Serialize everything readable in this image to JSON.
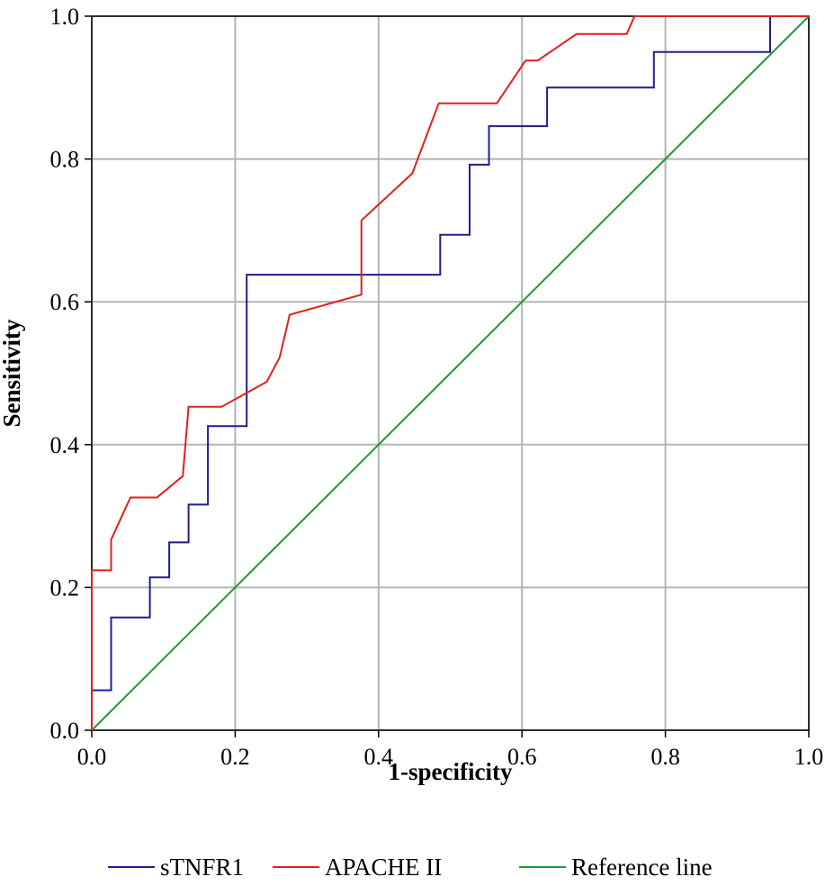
{
  "chart_data": {
    "type": "line",
    "title": "",
    "xlabel": "1-specificity",
    "ylabel": "Sensitivity",
    "xlim": [
      0,
      1
    ],
    "ylim": [
      0,
      1
    ],
    "x_ticks": [
      "0.0",
      "0.2",
      "0.4",
      "0.6",
      "0.8",
      "1.0"
    ],
    "y_ticks": [
      "0.0",
      "0.2",
      "0.4",
      "0.6",
      "0.8",
      "1.0"
    ],
    "grid": true,
    "legend_position": "bottom",
    "series": [
      {
        "name": "sTNFR1",
        "color": "#1f1f8f",
        "x": [
          0,
          0,
          0.027,
          0.027,
          0.081,
          0.081,
          0.108,
          0.108,
          0.135,
          0.135,
          0.162,
          0.162,
          0.216,
          0.216,
          0.486,
          0.486,
          0.527,
          0.527,
          0.554,
          0.554,
          0.635,
          0.635,
          0.784,
          0.784,
          0.946,
          0.946,
          1.0
        ],
        "y": [
          0,
          0.056,
          0.056,
          0.158,
          0.158,
          0.214,
          0.214,
          0.263,
          0.263,
          0.316,
          0.316,
          0.426,
          0.426,
          0.638,
          0.638,
          0.694,
          0.694,
          0.792,
          0.792,
          0.846,
          0.846,
          0.9,
          0.9,
          0.95,
          0.95,
          1.0,
          1.0
        ]
      },
      {
        "name": "APACHE II",
        "color": "#e0201e",
        "x": [
          0,
          0,
          0.027,
          0.027,
          0.054,
          0.091,
          0.127,
          0.135,
          0.181,
          0.244,
          0.262,
          0.276,
          0.376,
          0.376,
          0.447,
          0.484,
          0.565,
          0.605,
          0.622,
          0.676,
          0.746,
          0.757,
          1.0
        ],
        "y": [
          0,
          0.224,
          0.224,
          0.267,
          0.326,
          0.326,
          0.356,
          0.453,
          0.453,
          0.488,
          0.522,
          0.582,
          0.61,
          0.714,
          0.78,
          0.878,
          0.878,
          0.938,
          0.938,
          0.975,
          0.975,
          1.0,
          1.0
        ]
      },
      {
        "name": "Reference line",
        "color": "#1a9a3c",
        "x": [
          0,
          1
        ],
        "y": [
          0,
          1
        ]
      }
    ]
  }
}
